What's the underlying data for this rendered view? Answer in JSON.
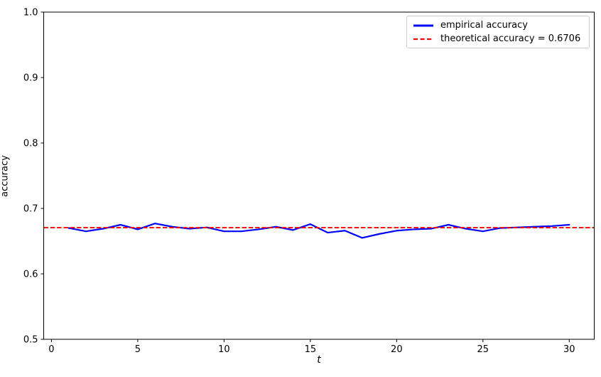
{
  "chart_data": {
    "type": "line",
    "title": "",
    "xlabel": "t",
    "ylabel": "accuracy",
    "xlim": [
      -0.45,
      31.45
    ],
    "ylim": [
      0.5,
      1.0
    ],
    "x_ticks": [
      0,
      5,
      10,
      15,
      20,
      25,
      30
    ],
    "x_tick_labels": [
      "0",
      "5",
      "10",
      "15",
      "20",
      "25",
      "30"
    ],
    "y_ticks": [
      0.5,
      0.6,
      0.7,
      0.8,
      0.9,
      1.0
    ],
    "y_tick_labels": [
      "0.5",
      "0.6",
      "0.7",
      "0.8",
      "0.9",
      "1.0"
    ],
    "grid": false,
    "legend_position": "upper right",
    "series": [
      {
        "name": "empirical accuracy",
        "type": "line",
        "color": "#0000ff",
        "linestyle": "solid",
        "linewidth": 2.2,
        "x": [
          1,
          2,
          3,
          4,
          5,
          6,
          7,
          8,
          9,
          10,
          11,
          12,
          13,
          14,
          15,
          16,
          17,
          18,
          19,
          20,
          21,
          22,
          23,
          24,
          25,
          26,
          27,
          28,
          29,
          30
        ],
        "y": [
          0.67,
          0.665,
          0.669,
          0.675,
          0.668,
          0.677,
          0.672,
          0.669,
          0.671,
          0.665,
          0.665,
          0.668,
          0.672,
          0.667,
          0.676,
          0.663,
          0.666,
          0.655,
          0.661,
          0.666,
          0.668,
          0.669,
          0.675,
          0.669,
          0.665,
          0.67,
          0.671,
          0.672,
          0.673,
          0.675
        ]
      },
      {
        "name": "theoretical accuracy = 0.6706",
        "type": "hline",
        "color": "#ff0000",
        "linestyle": "dashed",
        "linewidth": 1.8,
        "value": 0.6706
      }
    ]
  }
}
